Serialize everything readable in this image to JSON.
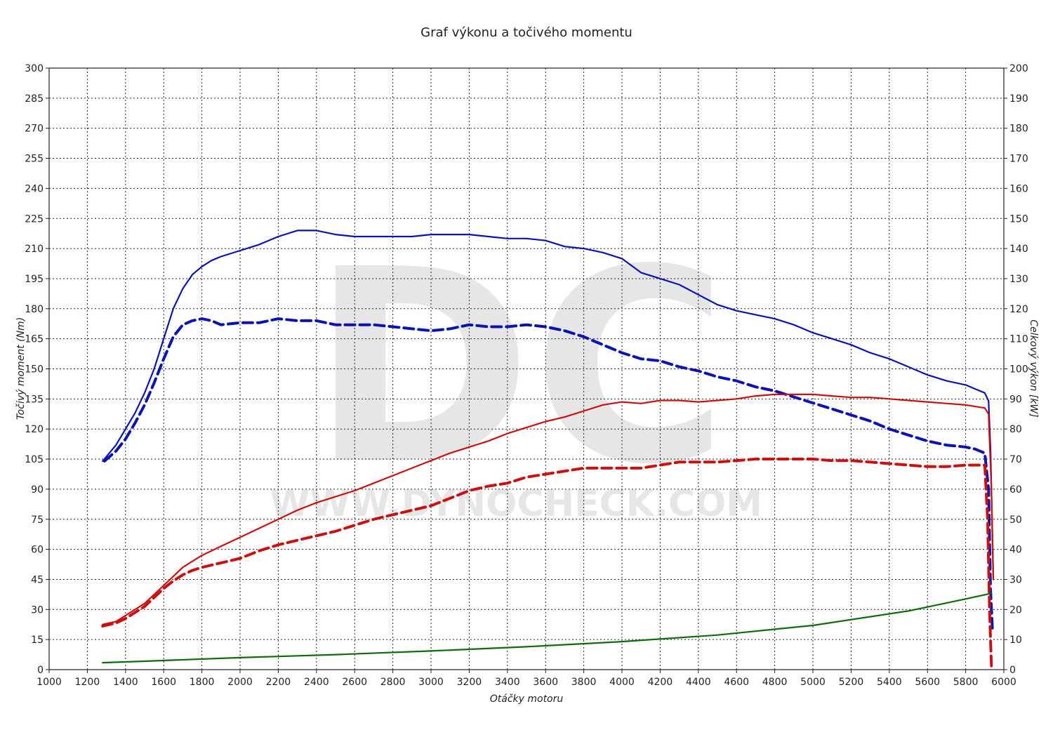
{
  "chart_data": {
    "type": "line",
    "title": "Graf výkonu a točivého momentu",
    "xlabel": "Otáčky motoru",
    "ylabel_left": "Točivý moment (Nm)",
    "ylabel_right": "Celkový výkon [kW]",
    "xlim": [
      1000,
      6000
    ],
    "ylim_left": [
      0,
      300
    ],
    "ylim_right": [
      0,
      200
    ],
    "x_ticks": [
      1000,
      1200,
      1400,
      1600,
      1800,
      2000,
      2200,
      2400,
      2600,
      2800,
      3000,
      3200,
      3400,
      3600,
      3800,
      4000,
      4200,
      4400,
      4600,
      4800,
      5000,
      5200,
      5400,
      5600,
      5800,
      6000
    ],
    "y_left_ticks": [
      0,
      15,
      30,
      45,
      60,
      75,
      90,
      105,
      120,
      135,
      150,
      165,
      180,
      195,
      210,
      225,
      240,
      255,
      270,
      285,
      300
    ],
    "y_right_ticks": [
      0,
      10,
      20,
      30,
      40,
      50,
      60,
      70,
      80,
      90,
      100,
      110,
      120,
      130,
      140,
      150,
      160,
      170,
      180,
      190,
      200
    ],
    "grid": true,
    "watermark": {
      "logo": "DC",
      "text": "WWW.DYNOCHECK.COM"
    },
    "colors": {
      "torque": "#0a14b4",
      "power": "#cc1010",
      "losses": "#0a6e0a"
    },
    "series": [
      {
        "axis": "left",
        "style": "solid",
        "color_key": "torque",
        "x": [
          1280,
          1350,
          1400,
          1450,
          1500,
          1550,
          1600,
          1650,
          1700,
          1750,
          1800,
          1850,
          1900,
          2000,
          2100,
          2200,
          2300,
          2400,
          2500,
          2600,
          2700,
          2800,
          2900,
          3000,
          3100,
          3200,
          3300,
          3400,
          3500,
          3600,
          3700,
          3800,
          3900,
          4000,
          4100,
          4200,
          4300,
          4400,
          4500,
          4600,
          4700,
          4800,
          4900,
          5000,
          5100,
          5200,
          5300,
          5400,
          5500,
          5600,
          5700,
          5800,
          5850,
          5900,
          5920,
          5930,
          5945
        ],
        "y": [
          104,
          112,
          120,
          128,
          138,
          150,
          165,
          180,
          190,
          197,
          201,
          204,
          206,
          209,
          212,
          216,
          219,
          219,
          217,
          216,
          216,
          216,
          216,
          217,
          217,
          217,
          216,
          215,
          215,
          214,
          211,
          210,
          208,
          205,
          198,
          195,
          192,
          187,
          182,
          179,
          177,
          175,
          172,
          168,
          165,
          162,
          158,
          155,
          151,
          147,
          144,
          142,
          140,
          138,
          134,
          110,
          45
        ]
      },
      {
        "axis": "left",
        "style": "dashed",
        "color_key": "torque",
        "x": [
          1290,
          1350,
          1400,
          1450,
          1500,
          1550,
          1600,
          1650,
          1700,
          1750,
          1800,
          1850,
          1900,
          2000,
          2100,
          2200,
          2300,
          2400,
          2500,
          2600,
          2700,
          2800,
          2900,
          3000,
          3100,
          3200,
          3300,
          3400,
          3500,
          3600,
          3700,
          3800,
          3900,
          4000,
          4100,
          4200,
          4300,
          4400,
          4500,
          4600,
          4700,
          4800,
          4900,
          5000,
          5100,
          5200,
          5300,
          5400,
          5500,
          5600,
          5700,
          5800,
          5850,
          5900,
          5920,
          5930,
          5940
        ],
        "y": [
          104,
          109,
          115,
          123,
          132,
          143,
          155,
          166,
          172,
          174,
          175,
          174,
          172,
          173,
          173,
          175,
          174,
          174,
          172,
          172,
          172,
          171,
          170,
          169,
          170,
          172,
          171,
          171,
          172,
          171,
          169,
          166,
          162,
          158,
          155,
          154,
          151,
          149,
          146,
          144,
          141,
          139,
          136,
          133,
          130,
          127,
          124,
          120,
          117,
          114,
          112,
          111,
          110,
          108,
          90,
          40,
          20
        ]
      },
      {
        "axis": "right",
        "style": "solid",
        "color_key": "power",
        "x": [
          1280,
          1350,
          1400,
          1450,
          1500,
          1550,
          1600,
          1650,
          1700,
          1750,
          1800,
          1900,
          2000,
          2100,
          2200,
          2300,
          2400,
          2500,
          2600,
          2700,
          2800,
          2900,
          3000,
          3100,
          3200,
          3300,
          3400,
          3500,
          3600,
          3700,
          3800,
          3900,
          4000,
          4100,
          4200,
          4300,
          4400,
          4500,
          4600,
          4700,
          4800,
          4900,
          5000,
          5100,
          5200,
          5300,
          5400,
          5500,
          5600,
          5700,
          5800,
          5850,
          5900,
          5920,
          5935,
          5945
        ],
        "y": [
          15,
          16,
          18,
          20,
          22,
          25,
          28,
          31,
          34,
          36,
          38,
          41,
          44,
          47,
          50,
          53,
          55.5,
          57.5,
          59.5,
          62,
          64.5,
          67,
          69.5,
          72,
          74,
          76,
          78.5,
          80.5,
          82.5,
          84,
          86,
          88,
          89,
          88.5,
          89.5,
          89.5,
          89,
          89.5,
          90,
          91,
          91.5,
          91.5,
          91.5,
          91,
          90.5,
          90.5,
          90,
          89.5,
          89,
          88.5,
          88,
          87.5,
          87,
          85,
          60,
          30
        ]
      },
      {
        "axis": "right",
        "style": "dashed",
        "color_key": "power",
        "x": [
          1280,
          1350,
          1400,
          1450,
          1500,
          1550,
          1600,
          1650,
          1700,
          1750,
          1800,
          1900,
          2000,
          2100,
          2200,
          2300,
          2400,
          2500,
          2600,
          2700,
          2800,
          2900,
          3000,
          3100,
          3200,
          3300,
          3400,
          3500,
          3600,
          3700,
          3800,
          3900,
          4000,
          4100,
          4200,
          4300,
          4400,
          4500,
          4600,
          4700,
          4800,
          4900,
          5000,
          5100,
          5200,
          5300,
          5400,
          5500,
          5600,
          5700,
          5800,
          5850,
          5900,
          5915,
          5925,
          5935
        ],
        "y": [
          14.5,
          15.5,
          17,
          19,
          21,
          24,
          27,
          29.5,
          31.5,
          33,
          34,
          35.5,
          37,
          39.5,
          41.5,
          43,
          44.5,
          46,
          48,
          50,
          51.5,
          53,
          54.5,
          57,
          59.5,
          61,
          62,
          64,
          65,
          66,
          67,
          67,
          67,
          67,
          68,
          69,
          69,
          69,
          69.5,
          70,
          70,
          70,
          70,
          69.5,
          69.5,
          69,
          68.5,
          68,
          67.5,
          67.5,
          68,
          68,
          68,
          50,
          20,
          1
        ]
      },
      {
        "axis": "right",
        "style": "solid",
        "color_key": "losses",
        "x": [
          1280,
          1500,
          2000,
          2500,
          3000,
          3500,
          4000,
          4500,
          5000,
          5500,
          5800,
          5930
        ],
        "y": [
          2.3,
          2.8,
          4,
          5,
          6.2,
          7.6,
          9.3,
          11.5,
          14.7,
          19.5,
          23.5,
          25.3
        ]
      }
    ]
  }
}
